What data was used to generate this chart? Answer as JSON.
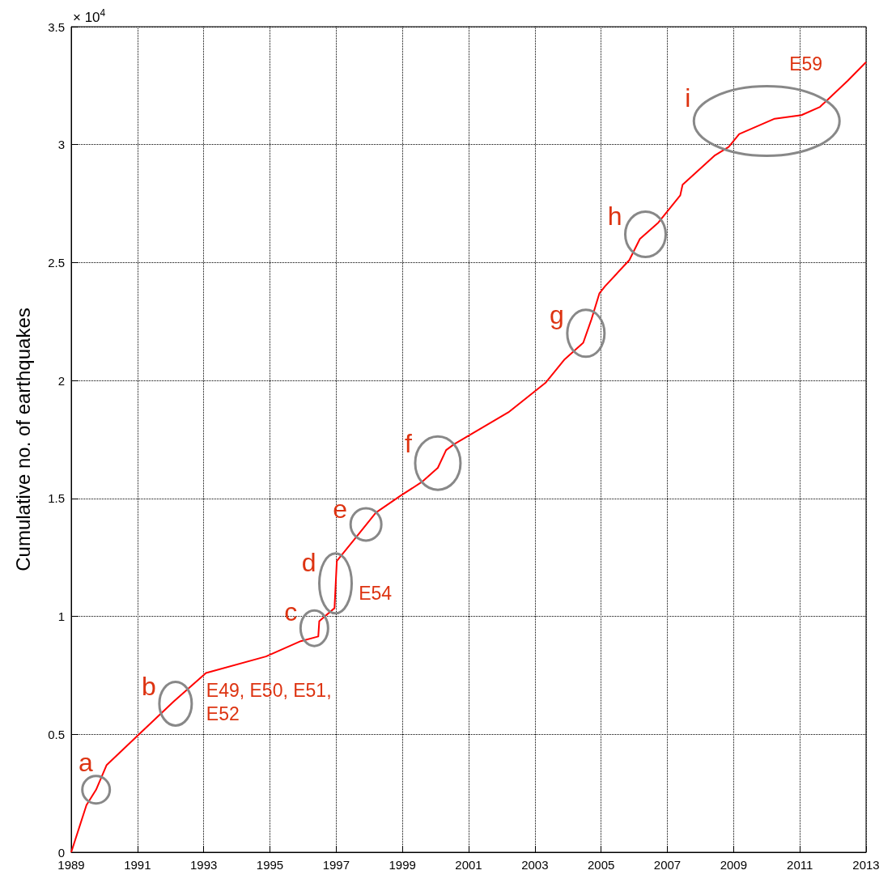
{
  "chart_data": {
    "type": "line",
    "ylabel": "Cumulative no. of earthquakes",
    "xlim": [
      1989,
      2013
    ],
    "xticks": [
      1989,
      1991,
      1993,
      1995,
      1997,
      1999,
      2001,
      2003,
      2005,
      2007,
      2009,
      2011,
      2013
    ],
    "ylim": [
      0,
      3.5
    ],
    "yticks": [
      0,
      0.5,
      1,
      1.5,
      2,
      2.5,
      3,
      3.5
    ],
    "grid": true,
    "marker": "none",
    "line_style": "solid",
    "series": [
      {
        "color": "#ff0000",
        "x": [
          1989.0,
          1989.46,
          1989.75,
          1990.07,
          1990.97,
          1992.1,
          1993.07,
          1994.88,
          1995.93,
          1996.46,
          1996.49,
          1996.95,
          1997.02,
          1997.63,
          1998.2,
          1998.93,
          1999.59,
          2000.07,
          2000.32,
          2000.56,
          2002.2,
          2003.32,
          2003.9,
          2004.46,
          2004.71,
          2004.95,
          2005.12,
          2005.85,
          2006.17,
          2006.73,
          2007.39,
          2007.46,
          2008.44,
          2008.85,
          2009.17,
          2010.24,
          2011.05,
          2011.61,
          2012.44,
          2013.0
        ],
        "values": [
          0.0,
          0.2,
          0.265,
          0.37,
          0.49,
          0.64,
          0.76,
          0.83,
          0.895,
          0.915,
          0.98,
          1.035,
          1.235,
          1.34,
          1.44,
          1.51,
          1.57,
          1.63,
          1.705,
          1.73,
          1.865,
          1.99,
          2.09,
          2.16,
          2.26,
          2.37,
          2.4,
          2.51,
          2.6,
          2.67,
          2.785,
          2.83,
          2.955,
          2.99,
          3.045,
          3.11,
          3.125,
          3.16,
          3.27,
          3.35
        ]
      }
    ],
    "annotations": [
      {
        "text": "a",
        "x": 1989.75,
        "y": 0.265
      },
      {
        "text": "b",
        "x": 1992.15,
        "y": 0.63
      },
      {
        "text": "c",
        "x": 1996.34,
        "y": 0.95
      },
      {
        "text": "d",
        "x": 1996.98,
        "y": 1.14
      },
      {
        "text": "e",
        "x": 1997.9,
        "y": 1.39
      },
      {
        "text": "f",
        "x": 2000.07,
        "y": 1.65
      },
      {
        "text": "g",
        "x": 2004.54,
        "y": 2.2
      },
      {
        "text": "h",
        "x": 2006.34,
        "y": 2.62
      },
      {
        "text": "i",
        "x": 2010.0,
        "y": 3.1
      },
      {
        "text": "E49, E50, E51, E52",
        "x": 1992.1,
        "y": 0.64
      },
      {
        "text": "E54",
        "x": 1997.02,
        "y": 1.14
      },
      {
        "text": "E59",
        "x": 2011.61,
        "y": 3.16
      },
      "× 10$^{4}$"
    ]
  }
}
